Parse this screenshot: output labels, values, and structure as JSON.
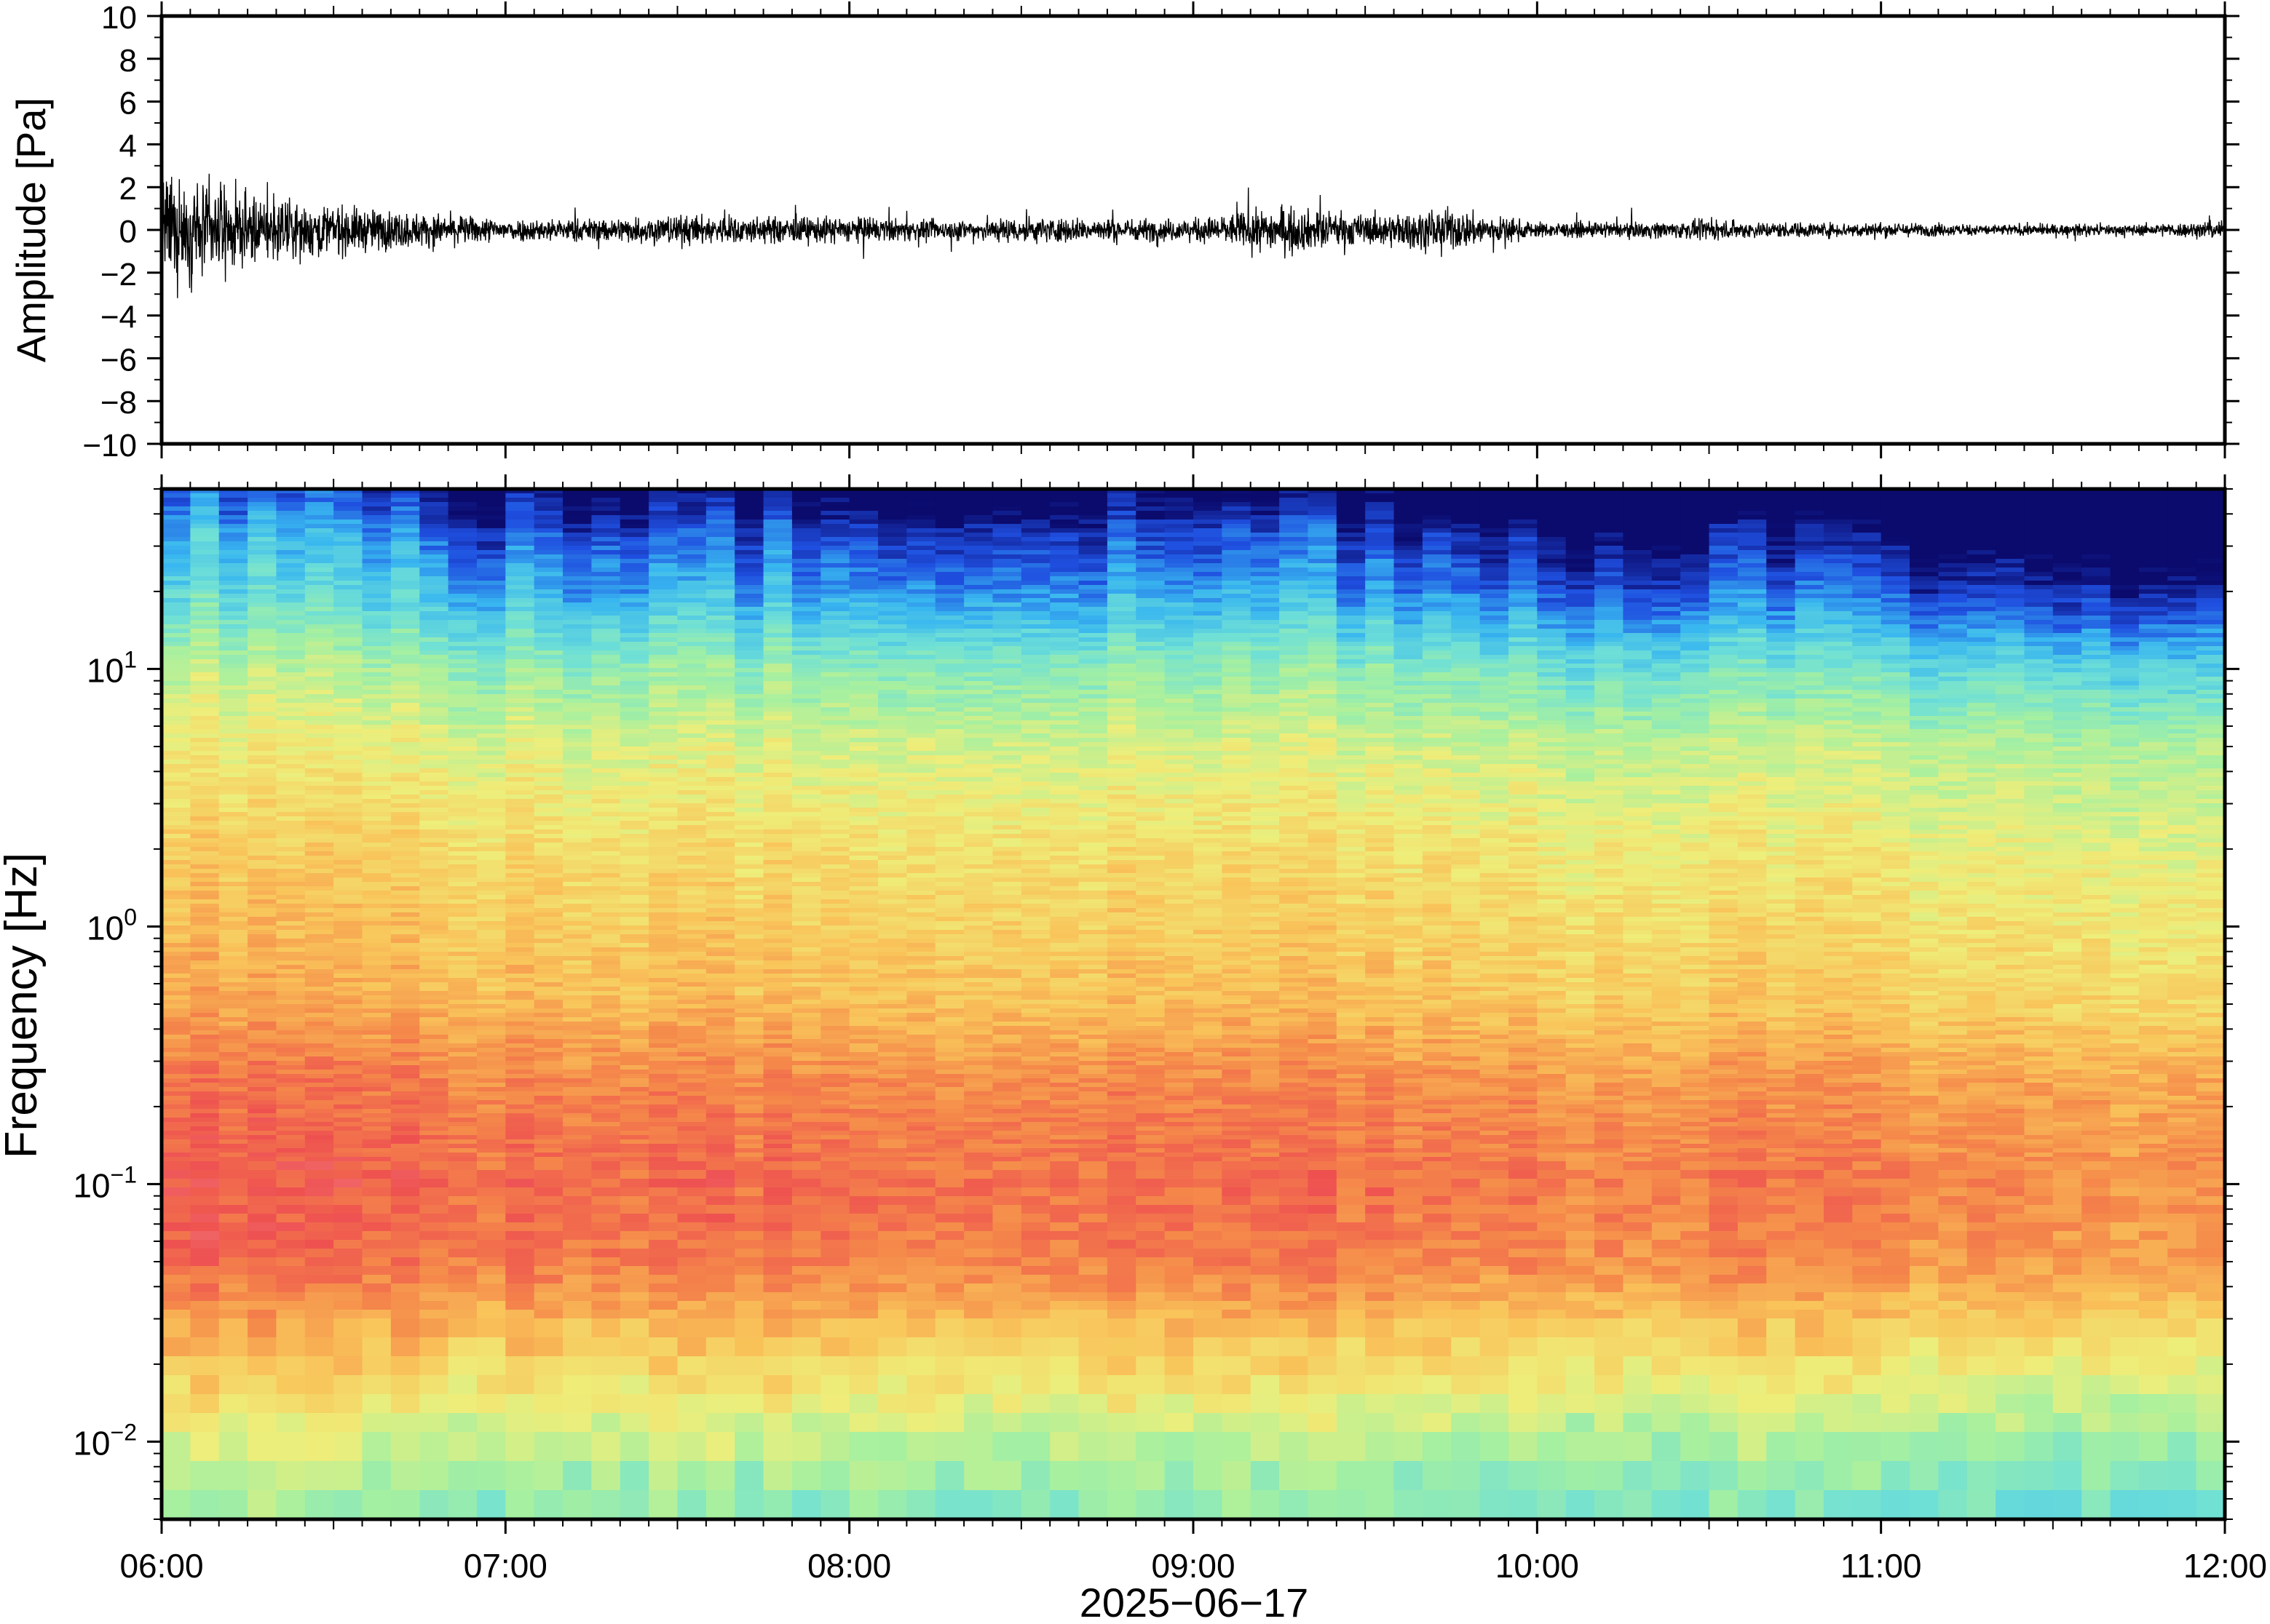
{
  "chart_data": [
    {
      "type": "line",
      "panel": "waveform",
      "ylabel": "Amplitude [Pa]",
      "ylim": [
        -10,
        10
      ],
      "yticks": [
        -10,
        -8,
        -6,
        -4,
        -2,
        0,
        2,
        4,
        6,
        8,
        10
      ],
      "ytick_labels": [
        "−10",
        "−8",
        "−6",
        "−4",
        "−2",
        "0",
        "2",
        "4",
        "6",
        "8",
        "10"
      ],
      "xlim": [
        "2025-06-17T06:00",
        "2025-06-17T12:00"
      ],
      "series": [
        {
          "x": [
            "06:00",
            "06:15",
            "06:30",
            "06:45",
            "07:00",
            "07:15",
            "07:30",
            "07:45",
            "08:00",
            "08:15",
            "08:30",
            "08:45",
            "09:00",
            "09:15",
            "09:30",
            "09:45",
            "10:00",
            "10:15",
            "10:30",
            "10:45",
            "11:00",
            "11:15",
            "11:30",
            "11:45",
            "12:00"
          ],
          "envelope": [
            2.8,
            1.8,
            1.3,
            0.9,
            0.6,
            0.6,
            0.8,
            0.7,
            0.7,
            0.5,
            0.7,
            0.6,
            0.6,
            1.2,
            0.8,
            1.1,
            0.4,
            0.4,
            0.5,
            0.4,
            0.4,
            0.3,
            0.3,
            0.3,
            0.5
          ],
          "peak_min": -4.2,
          "peak_max": 3.0
        }
      ],
      "color": "#000000"
    },
    {
      "type": "heatmap",
      "panel": "spectrogram",
      "ylabel": "Frequency [Hz]",
      "yscale": "log",
      "ylim": [
        0.005,
        50
      ],
      "yticks": [
        0.01,
        0.1,
        1,
        10
      ],
      "ytick_labels": [
        {
          "base": "10",
          "exp": "−2"
        },
        {
          "base": "10",
          "exp": "−1"
        },
        {
          "base": "10",
          "exp": "0"
        },
        {
          "base": "10",
          "exp": "1"
        }
      ],
      "xlim": [
        "2025-06-17T06:00",
        "2025-06-17T12:00"
      ],
      "colormap": "rainbow (navy → blue → cyan → green → yellow → orange → red → pink)",
      "colors": [
        "#0b0b6e",
        "#1f4fe0",
        "#38b6f0",
        "#6fe0d6",
        "#a6f0a0",
        "#eeee7a",
        "#f9c45a",
        "#f58a4a",
        "#ee5050",
        "#f7a0a8"
      ],
      "y_profile": [
        {
          "freq": 40,
          "level": 0.05
        },
        {
          "freq": 20,
          "level": 0.2
        },
        {
          "freq": 10,
          "level": 0.4
        },
        {
          "freq": 5,
          "level": 0.52
        },
        {
          "freq": 2,
          "level": 0.6
        },
        {
          "freq": 1,
          "level": 0.64
        },
        {
          "freq": 0.5,
          "level": 0.68
        },
        {
          "freq": 0.25,
          "level": 0.78
        },
        {
          "freq": 0.1,
          "level": 0.83
        },
        {
          "freq": 0.05,
          "level": 0.8
        },
        {
          "freq": 0.025,
          "level": 0.66
        },
        {
          "freq": 0.012,
          "level": 0.52
        },
        {
          "freq": 0.006,
          "level": 0.4
        }
      ],
      "time_profile": [
        {
          "t": "06:00",
          "offset": 0.1
        },
        {
          "t": "06:30",
          "offset": 0.06
        },
        {
          "t": "07:00",
          "offset": 0.01
        },
        {
          "t": "08:00",
          "offset": 0.01
        },
        {
          "t": "09:00",
          "offset": 0.0
        },
        {
          "t": "09:15",
          "offset": 0.02
        },
        {
          "t": "10:00",
          "offset": -0.03
        },
        {
          "t": "10:15",
          "offset": -0.06
        },
        {
          "t": "10:30",
          "offset": -0.02
        },
        {
          "t": "11:00",
          "offset": -0.06
        },
        {
          "t": "11:30",
          "offset": -0.09
        },
        {
          "t": "12:00",
          "offset": -0.09
        }
      ]
    }
  ],
  "x_axis": {
    "ticks": [
      "06:00",
      "07:00",
      "08:00",
      "09:00",
      "10:00",
      "11:00",
      "12:00"
    ],
    "date_label": "2025−06−17"
  }
}
